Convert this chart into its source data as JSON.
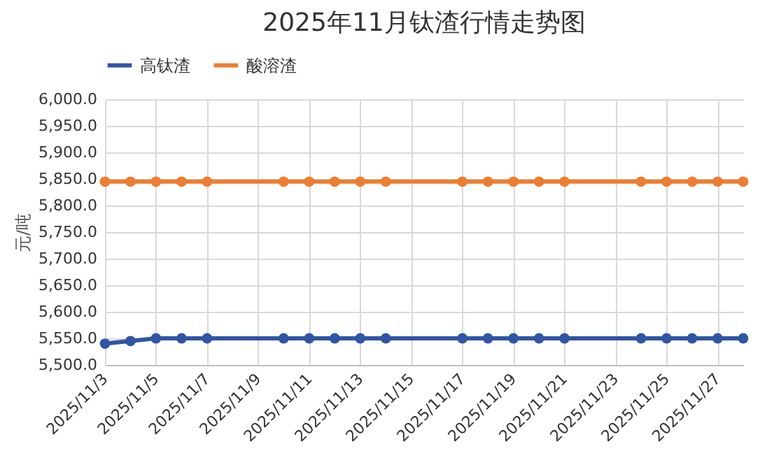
{
  "chart_data": {
    "type": "line",
    "title": "2025年11月钛渣行情走势图",
    "ylabel": "元/吨",
    "x": [
      "2025-11-03",
      "2025-11-04",
      "2025-11-05",
      "2025-11-06",
      "2025-11-07",
      "2025-11-10",
      "2025-11-11",
      "2025-11-12",
      "2025-11-13",
      "2025-11-14",
      "2025-11-17",
      "2025-11-18",
      "2025-11-19",
      "2025-11-20",
      "2025-11-21",
      "2025-11-24",
      "2025-11-25",
      "2025-11-26",
      "2025-11-27",
      "2025-11-28"
    ],
    "series": [
      {
        "name": "高钛渣",
        "color": "#2f55a4",
        "values": [
          5540,
          5545,
          5550,
          5550,
          5550,
          5550,
          5550,
          5550,
          5550,
          5550,
          5550,
          5550,
          5550,
          5550,
          5550,
          5550,
          5550,
          5550,
          5550,
          5550
        ]
      },
      {
        "name": "酸溶渣",
        "color": "#ed7d31",
        "values": [
          5845,
          5845,
          5845,
          5845,
          5845,
          5845,
          5845,
          5845,
          5845,
          5845,
          5845,
          5845,
          5845,
          5845,
          5845,
          5845,
          5845,
          5845,
          5845,
          5845
        ]
      }
    ],
    "xlim": [
      "2025-11-03",
      "2025-11-28"
    ],
    "xticks": [
      {
        "value": "2025-11-03",
        "label": "2025/11/3"
      },
      {
        "value": "2025-11-05",
        "label": "2025/11/5"
      },
      {
        "value": "2025-11-07",
        "label": "2025/11/7"
      },
      {
        "value": "2025-11-09",
        "label": "2025/11/9"
      },
      {
        "value": "2025-11-11",
        "label": "2025/11/11"
      },
      {
        "value": "2025-11-13",
        "label": "2025/11/13"
      },
      {
        "value": "2025-11-15",
        "label": "2025/11/15"
      },
      {
        "value": "2025-11-17",
        "label": "2025/11/17"
      },
      {
        "value": "2025-11-19",
        "label": "2025/11/19"
      },
      {
        "value": "2025-11-21",
        "label": "2025/11/21"
      },
      {
        "value": "2025-11-23",
        "label": "2025/11/23"
      },
      {
        "value": "2025-11-25",
        "label": "2025/11/25"
      },
      {
        "value": "2025-11-27",
        "label": "2025/11/27"
      }
    ],
    "ylim": [
      5500,
      6000
    ],
    "yticks": [
      {
        "value": 5500,
        "label": "5,500.0"
      },
      {
        "value": 5550,
        "label": "5,550.0"
      },
      {
        "value": 5600,
        "label": "5,600.0"
      },
      {
        "value": 5650,
        "label": "5,650.0"
      },
      {
        "value": 5700,
        "label": "5,700.0"
      },
      {
        "value": 5750,
        "label": "5,750.0"
      },
      {
        "value": 5800,
        "label": "5,800.0"
      },
      {
        "value": 5850,
        "label": "5,850.0"
      },
      {
        "value": 5900,
        "label": "5,900.0"
      },
      {
        "value": 5950,
        "label": "5,950.0"
      },
      {
        "value": 6000,
        "label": "6,000.0"
      }
    ],
    "grid": true,
    "legend": "top",
    "marker": "circle",
    "line_style": "solid"
  }
}
